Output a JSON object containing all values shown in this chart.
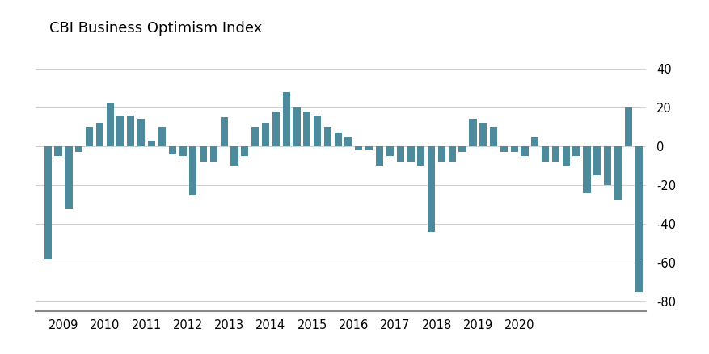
{
  "title": "CBI Business Optimism Index",
  "bar_color": "#4d8a9c",
  "background_color": "#ffffff",
  "grid_color": "#d0d0d0",
  "axis_line_color": "#888888",
  "ylim": [
    -85,
    48
  ],
  "yticks": [
    -80,
    -60,
    -40,
    -20,
    0,
    20,
    40
  ],
  "bar_values": [
    -58,
    -5,
    -32,
    -3,
    10,
    12,
    22,
    16,
    16,
    14,
    3,
    10,
    -4,
    -5,
    -25,
    -8,
    -8,
    15,
    -10,
    -5,
    10,
    12,
    18,
    28,
    20,
    18,
    16,
    10,
    7,
    5,
    -2,
    -2,
    -10,
    -5,
    -8,
    -8,
    -10,
    -44,
    -8,
    -8,
    -3,
    14,
    12,
    10,
    -3,
    -3,
    -5,
    5,
    -8,
    -8,
    -10,
    -5,
    -24,
    -15,
    -20,
    -28,
    20,
    -75
  ],
  "x_tick_years": [
    2009,
    2010,
    2011,
    2012,
    2013,
    2014,
    2015,
    2016,
    2017,
    2018,
    2019,
    2020
  ],
  "title_fontsize": 13,
  "tick_fontsize": 10.5
}
